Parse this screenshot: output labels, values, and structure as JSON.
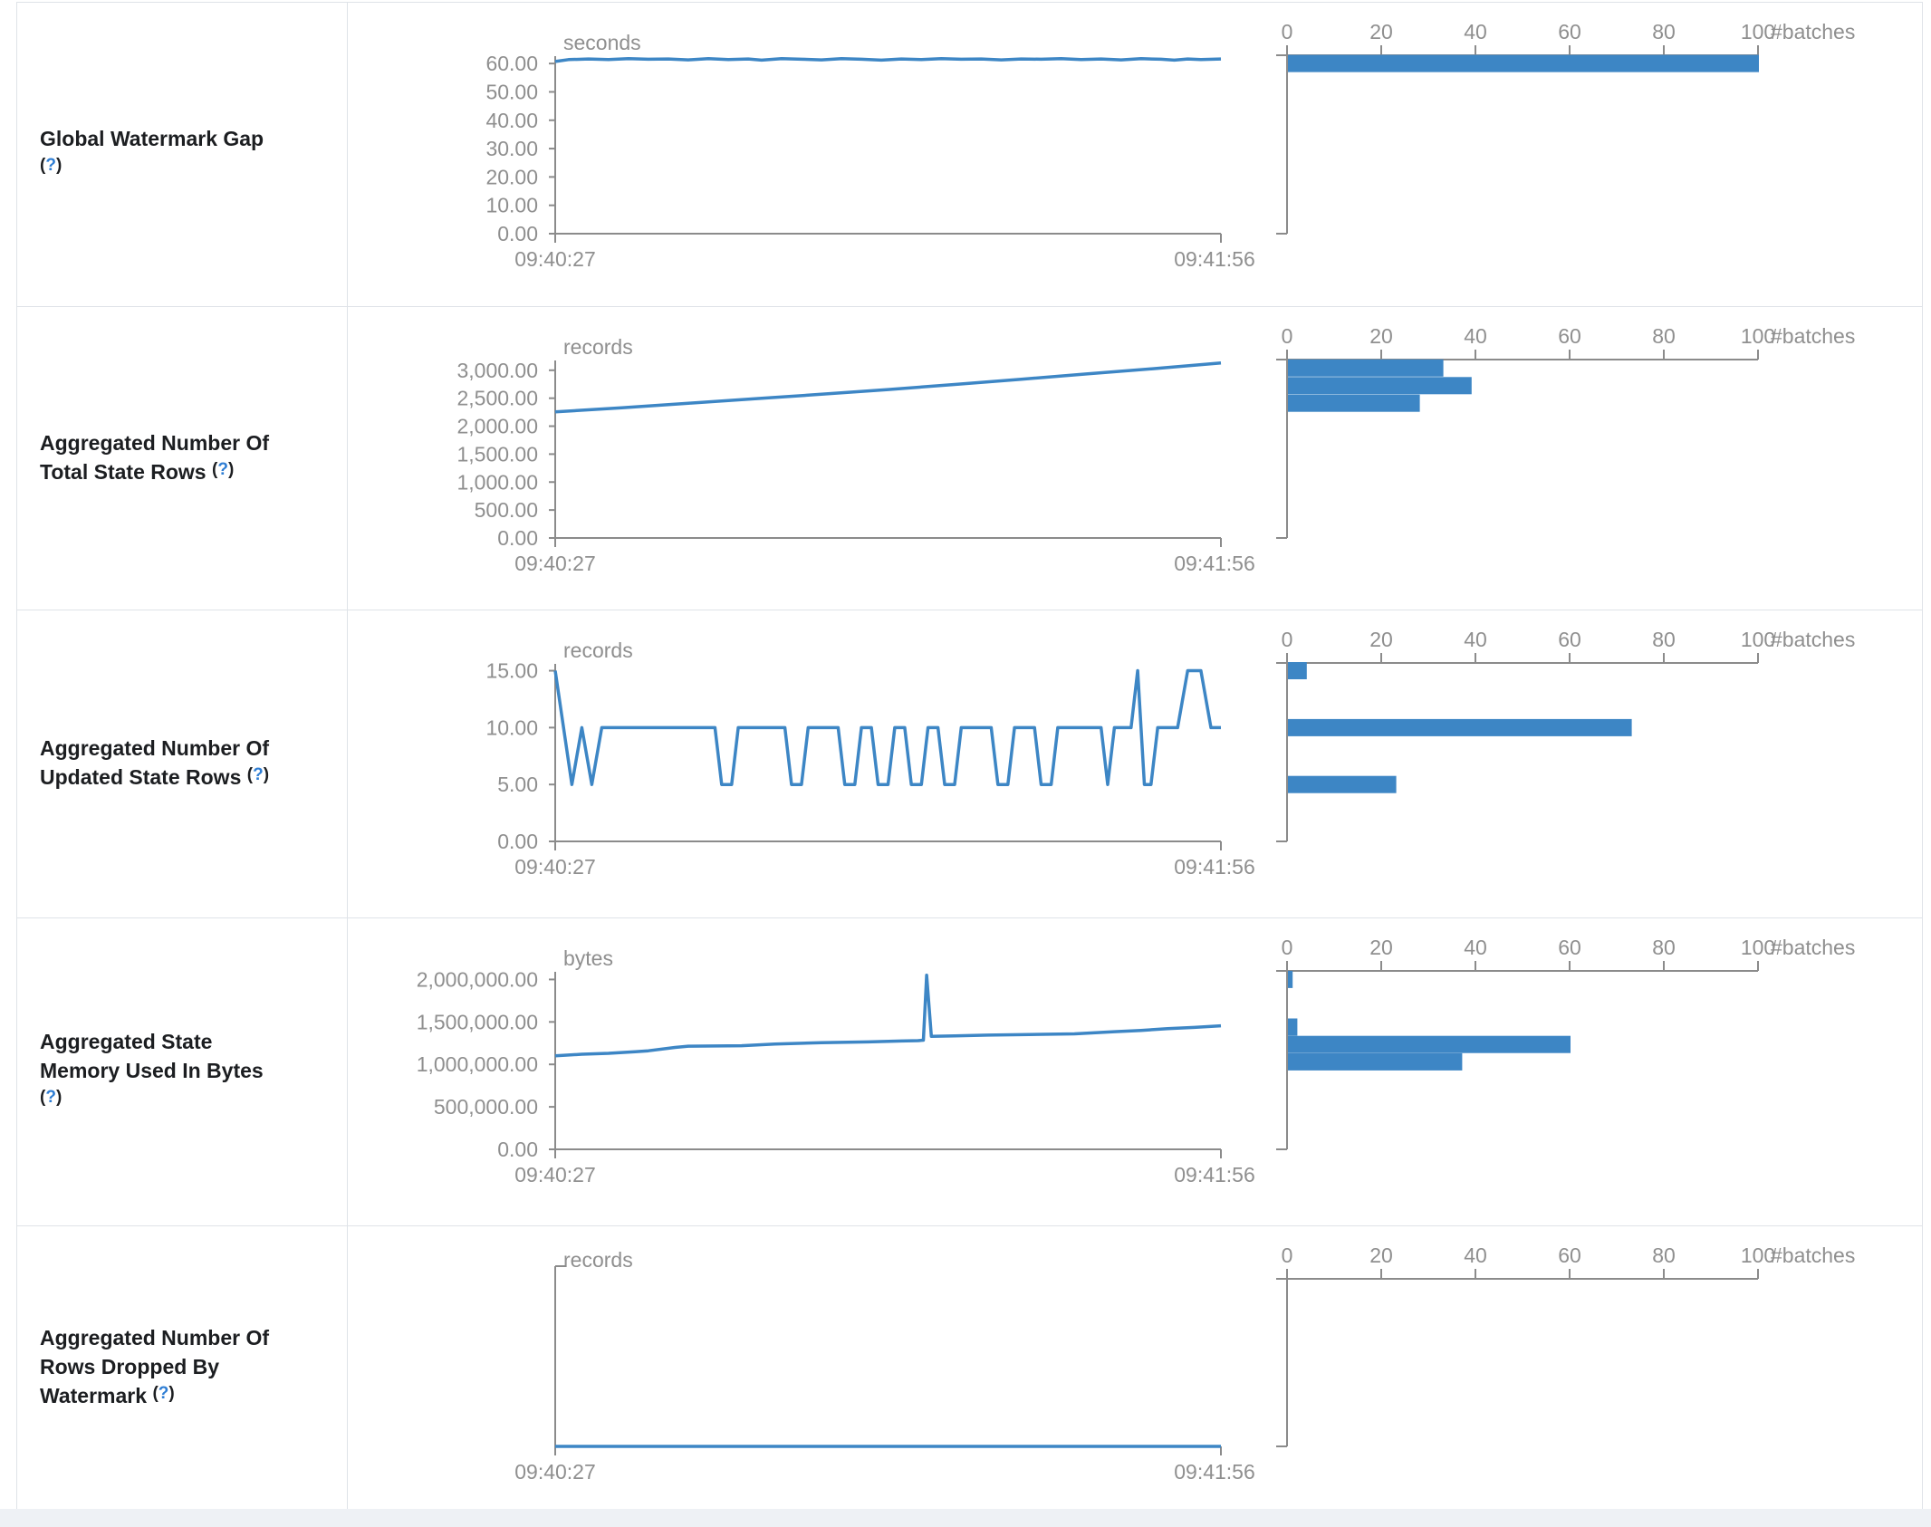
{
  "colors": {
    "accent": "#3d86c5",
    "axis_text": "#8f8f8f",
    "axis_line": "#8b8b8b",
    "border": "#dfe3e8",
    "label_text": "#1c1e21",
    "help_link": "#2f7ed4",
    "page_strip": "#eef1f5"
  },
  "help": {
    "open": "(",
    "symbol": "?",
    "close": ")"
  },
  "x_axis": {
    "start": "09:40:27",
    "end": "09:41:56"
  },
  "histogram_axis": {
    "unit": "#batches",
    "ticks": [
      {
        "v": 0,
        "label": "0"
      },
      {
        "v": 20,
        "label": "20"
      },
      {
        "v": 40,
        "label": "40"
      },
      {
        "v": 60,
        "label": "60"
      },
      {
        "v": 80,
        "label": "80"
      },
      {
        "v": 100,
        "label": "100"
      }
    ]
  },
  "rows": [
    {
      "label": {
        "lines": [
          "Global Watermark Gap"
        ],
        "help_line": null,
        "help_own_line": true
      },
      "chart_data": {
        "type": "line",
        "title": "Global Watermark Gap",
        "unit": "seconds",
        "xlabel_start": "09:40:27",
        "xlabel_end": "09:41:56",
        "ymax": 62.6,
        "y_ticks": [
          {
            "v": 0,
            "label": "0.00"
          },
          {
            "v": 10,
            "label": "10.00"
          },
          {
            "v": 20,
            "label": "20.00"
          },
          {
            "v": 30,
            "label": "30.00"
          },
          {
            "v": 40,
            "label": "40.00"
          },
          {
            "v": 50,
            "label": "50.00"
          },
          {
            "v": 60,
            "label": "60.00"
          }
        ],
        "series": [
          [
            0,
            60.7
          ],
          [
            0.02,
            61.4
          ],
          [
            0.05,
            61.6
          ],
          [
            0.08,
            61.4
          ],
          [
            0.11,
            61.7
          ],
          [
            0.14,
            61.5
          ],
          [
            0.17,
            61.6
          ],
          [
            0.2,
            61.3
          ],
          [
            0.23,
            61.7
          ],
          [
            0.26,
            61.4
          ],
          [
            0.29,
            61.6
          ],
          [
            0.31,
            61.2
          ],
          [
            0.34,
            61.7
          ],
          [
            0.37,
            61.5
          ],
          [
            0.4,
            61.3
          ],
          [
            0.43,
            61.7
          ],
          [
            0.46,
            61.5
          ],
          [
            0.49,
            61.2
          ],
          [
            0.52,
            61.6
          ],
          [
            0.55,
            61.4
          ],
          [
            0.58,
            61.7
          ],
          [
            0.61,
            61.5
          ],
          [
            0.64,
            61.6
          ],
          [
            0.67,
            61.3
          ],
          [
            0.7,
            61.6
          ],
          [
            0.73,
            61.5
          ],
          [
            0.76,
            61.7
          ],
          [
            0.79,
            61.4
          ],
          [
            0.82,
            61.6
          ],
          [
            0.85,
            61.3
          ],
          [
            0.88,
            61.7
          ],
          [
            0.91,
            61.5
          ],
          [
            0.93,
            61.2
          ],
          [
            0.95,
            61.6
          ],
          [
            0.97,
            61.4
          ],
          [
            1,
            61.6
          ]
        ],
        "histogram_unit": "#batches",
        "histogram_bins": [
          {
            "center": 60,
            "count": 100
          }
        ]
      }
    },
    {
      "label": {
        "lines": [
          "Aggregated Number Of",
          "Total State Rows"
        ],
        "help_line": 1,
        "help_own_line": false
      },
      "chart_data": {
        "type": "line",
        "title": "Aggregated Number Of Total State Rows",
        "unit": "records",
        "xlabel_start": "09:40:27",
        "xlabel_end": "09:41:56",
        "ymax": 3175,
        "y_ticks": [
          {
            "v": 0,
            "label": "0.00"
          },
          {
            "v": 500,
            "label": "500.00"
          },
          {
            "v": 1000,
            "label": "1,000.00"
          },
          {
            "v": 1500,
            "label": "1,500.00"
          },
          {
            "v": 2000,
            "label": "2,000.00"
          },
          {
            "v": 2500,
            "label": "2,500.00"
          },
          {
            "v": 3000,
            "label": "3,000.00"
          }
        ],
        "series": [
          [
            0,
            2255
          ],
          [
            0.1,
            2330
          ],
          [
            0.2,
            2410
          ],
          [
            0.3,
            2490
          ],
          [
            0.4,
            2570
          ],
          [
            0.5,
            2655
          ],
          [
            0.6,
            2745
          ],
          [
            0.7,
            2840
          ],
          [
            0.8,
            2935
          ],
          [
            0.9,
            3030
          ],
          [
            1,
            3130
          ]
        ],
        "histogram_unit": "#batches",
        "histogram_bins": [
          {
            "center": 3040,
            "count": 33
          },
          {
            "center": 2725,
            "count": 39
          },
          {
            "center": 2410,
            "count": 28
          }
        ]
      }
    },
    {
      "label": {
        "lines": [
          "Aggregated Number Of",
          "Updated State Rows"
        ],
        "help_line": 1,
        "help_own_line": false
      },
      "chart_data": {
        "type": "line",
        "title": "Aggregated Number Of Updated State Rows",
        "unit": "records",
        "xlabel_start": "09:40:27",
        "xlabel_end": "09:41:56",
        "ymax": 15.6,
        "y_ticks": [
          {
            "v": 0,
            "label": "0.00"
          },
          {
            "v": 5,
            "label": "5.00"
          },
          {
            "v": 10,
            "label": "10.00"
          },
          {
            "v": 15,
            "label": "15.00"
          }
        ],
        "series": [
          [
            0,
            15
          ],
          [
            0.025,
            5
          ],
          [
            0.04,
            10
          ],
          [
            0.055,
            5
          ],
          [
            0.07,
            10
          ],
          [
            0.24,
            10
          ],
          [
            0.25,
            5
          ],
          [
            0.265,
            5
          ],
          [
            0.275,
            10
          ],
          [
            0.345,
            10
          ],
          [
            0.355,
            5
          ],
          [
            0.37,
            5
          ],
          [
            0.38,
            10
          ],
          [
            0.425,
            10
          ],
          [
            0.435,
            5
          ],
          [
            0.45,
            5
          ],
          [
            0.46,
            10
          ],
          [
            0.475,
            10
          ],
          [
            0.485,
            5
          ],
          [
            0.5,
            5
          ],
          [
            0.51,
            10
          ],
          [
            0.525,
            10
          ],
          [
            0.535,
            5
          ],
          [
            0.55,
            5
          ],
          [
            0.56,
            10
          ],
          [
            0.575,
            10
          ],
          [
            0.585,
            5
          ],
          [
            0.6,
            5
          ],
          [
            0.61,
            10
          ],
          [
            0.655,
            10
          ],
          [
            0.665,
            5
          ],
          [
            0.68,
            5
          ],
          [
            0.69,
            10
          ],
          [
            0.72,
            10
          ],
          [
            0.73,
            5
          ],
          [
            0.745,
            5
          ],
          [
            0.755,
            10
          ],
          [
            0.82,
            10
          ],
          [
            0.83,
            5
          ],
          [
            0.84,
            10
          ],
          [
            0.865,
            10
          ],
          [
            0.875,
            15
          ],
          [
            0.885,
            5
          ],
          [
            0.895,
            5
          ],
          [
            0.905,
            10
          ],
          [
            0.935,
            10
          ],
          [
            0.95,
            15
          ],
          [
            0.97,
            15
          ],
          [
            0.985,
            10
          ],
          [
            1,
            10
          ]
        ],
        "histogram_unit": "#batches",
        "histogram_bins": [
          {
            "center": 15,
            "count": 4
          },
          {
            "center": 10,
            "count": 73
          },
          {
            "center": 5,
            "count": 23
          }
        ]
      }
    },
    {
      "label": {
        "lines": [
          "Aggregated State",
          "Memory Used In Bytes"
        ],
        "help_line": null,
        "help_own_line": true
      },
      "chart_data": {
        "type": "line",
        "title": "Aggregated State Memory Used In Bytes",
        "unit": "bytes",
        "xlabel_start": "09:40:27",
        "xlabel_end": "09:41:56",
        "ymax": 2090000,
        "y_ticks": [
          {
            "v": 0,
            "label": "0.00"
          },
          {
            "v": 500000,
            "label": "500,000.00"
          },
          {
            "v": 1000000,
            "label": "1,000,000.00"
          },
          {
            "v": 1500000,
            "label": "1,500,000.00"
          },
          {
            "v": 2000000,
            "label": "2,000,000.00"
          }
        ],
        "series": [
          [
            0,
            1100000
          ],
          [
            0.04,
            1120000
          ],
          [
            0.08,
            1130000
          ],
          [
            0.12,
            1150000
          ],
          [
            0.14,
            1160000
          ],
          [
            0.18,
            1200000
          ],
          [
            0.2,
            1215000
          ],
          [
            0.28,
            1220000
          ],
          [
            0.33,
            1240000
          ],
          [
            0.4,
            1255000
          ],
          [
            0.47,
            1265000
          ],
          [
            0.52,
            1275000
          ],
          [
            0.545,
            1280000
          ],
          [
            0.553,
            1285000
          ],
          [
            0.558,
            2050000
          ],
          [
            0.565,
            1330000
          ],
          [
            0.6,
            1335000
          ],
          [
            0.65,
            1345000
          ],
          [
            0.7,
            1350000
          ],
          [
            0.78,
            1360000
          ],
          [
            0.84,
            1385000
          ],
          [
            0.88,
            1400000
          ],
          [
            0.92,
            1420000
          ],
          [
            0.96,
            1435000
          ],
          [
            1,
            1455000
          ]
        ],
        "histogram_unit": "#batches",
        "histogram_bins": [
          {
            "center": 2000000,
            "count": 1
          },
          {
            "center": 1440000,
            "count": 2
          },
          {
            "center": 1235000,
            "count": 60
          },
          {
            "center": 1030000,
            "count": 37
          }
        ]
      }
    },
    {
      "label": {
        "lines": [
          "Aggregated Number Of",
          "Rows Dropped By",
          "Watermark"
        ],
        "help_line": 2,
        "help_own_line": false
      },
      "chart_data": {
        "type": "line",
        "title": "Aggregated Number Of Rows Dropped By Watermark",
        "unit": "records",
        "xlabel_start": "09:40:27",
        "xlabel_end": "09:41:56",
        "ymax": 1,
        "y_ticks": [],
        "series": [
          [
            0,
            0
          ],
          [
            1,
            0
          ]
        ],
        "histogram_unit": "#batches",
        "histogram_bins": []
      }
    }
  ]
}
